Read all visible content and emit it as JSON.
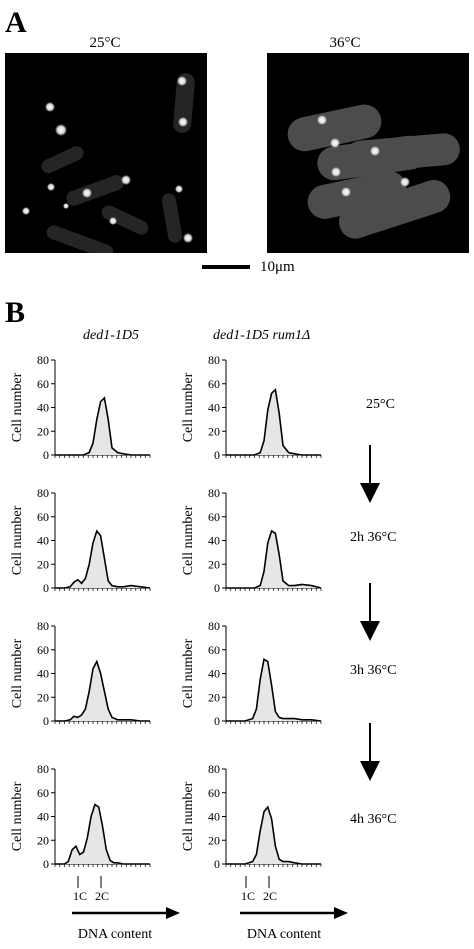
{
  "panel_a": {
    "letter": "A",
    "left_temp": "25°C",
    "right_temp": "36°C",
    "scale_label": "10μm"
  },
  "panel_b": {
    "letter": "B",
    "left_strain": "ded1-1D5",
    "right_strain": "ded1-1D5 rum1Δ",
    "y_axis_label": "Cell number",
    "y_ticks": [
      "0",
      "20",
      "40",
      "60",
      "80"
    ],
    "x_axis_label": "DNA content",
    "dna_markers": [
      "1C",
      "2C"
    ],
    "conditions": [
      "25°C",
      "2h 36°C",
      "3h 36°C",
      "4h 36°C"
    ]
  },
  "chart_data": [
    {
      "type": "area",
      "row": 0,
      "strain": "ded1-1D5",
      "condition": "25°C",
      "x": [
        0,
        10,
        20,
        30,
        36,
        40,
        44,
        48,
        52,
        56,
        60,
        66,
        72,
        80,
        90,
        100
      ],
      "values": [
        0,
        0,
        0,
        0,
        2,
        10,
        30,
        45,
        48,
        30,
        6,
        2,
        1,
        0,
        0,
        0
      ],
      "ylim": [
        0,
        80
      ],
      "xlabel": "",
      "ylabel": "Cell number"
    },
    {
      "type": "area",
      "row": 0,
      "strain": "ded1-1D5 rum1Δ",
      "condition": "25°C",
      "x": [
        0,
        10,
        20,
        30,
        36,
        40,
        44,
        48,
        52,
        56,
        60,
        66,
        72,
        80,
        90,
        100
      ],
      "values": [
        0,
        0,
        0,
        0,
        2,
        12,
        38,
        52,
        55,
        35,
        8,
        2,
        1,
        0,
        0,
        0
      ],
      "ylim": [
        0,
        80
      ],
      "xlabel": "",
      "ylabel": "Cell number"
    },
    {
      "type": "area",
      "row": 1,
      "strain": "ded1-1D5",
      "condition": "2h 36°C",
      "x": [
        0,
        10,
        16,
        20,
        24,
        28,
        32,
        36,
        40,
        44,
        48,
        52,
        56,
        60,
        66,
        72,
        80,
        90,
        100
      ],
      "values": [
        0,
        0,
        1,
        5,
        7,
        4,
        8,
        20,
        38,
        48,
        44,
        25,
        6,
        2,
        1,
        1,
        2,
        1,
        0
      ],
      "ylim": [
        0,
        80
      ],
      "xlabel": "",
      "ylabel": "Cell number"
    },
    {
      "type": "area",
      "row": 1,
      "strain": "ded1-1D5 rum1Δ",
      "condition": "2h 36°C",
      "x": [
        0,
        10,
        20,
        30,
        36,
        40,
        44,
        48,
        52,
        56,
        60,
        66,
        72,
        80,
        90,
        100
      ],
      "values": [
        0,
        0,
        0,
        0,
        2,
        14,
        38,
        48,
        46,
        28,
        6,
        2,
        2,
        3,
        2,
        0
      ],
      "ylim": [
        0,
        80
      ],
      "xlabel": "",
      "ylabel": "Cell number"
    },
    {
      "type": "area",
      "row": 2,
      "strain": "ded1-1D5",
      "condition": "3h 36°C",
      "x": [
        0,
        10,
        16,
        20,
        24,
        28,
        32,
        36,
        40,
        44,
        48,
        52,
        56,
        60,
        66,
        72,
        80,
        90,
        100
      ],
      "values": [
        0,
        0,
        1,
        4,
        3,
        5,
        10,
        25,
        44,
        50,
        40,
        25,
        10,
        3,
        1,
        1,
        1,
        0,
        0
      ],
      "ylim": [
        0,
        80
      ],
      "xlabel": "",
      "ylabel": "Cell number"
    },
    {
      "type": "area",
      "row": 2,
      "strain": "ded1-1D5 rum1Δ",
      "condition": "3h 36°C",
      "x": [
        0,
        10,
        20,
        28,
        32,
        36,
        40,
        44,
        48,
        52,
        56,
        60,
        66,
        72,
        80,
        90,
        100
      ],
      "values": [
        0,
        0,
        0,
        2,
        10,
        35,
        52,
        50,
        30,
        8,
        3,
        2,
        2,
        2,
        1,
        1,
        0
      ],
      "ylim": [
        0,
        80
      ],
      "xlabel": "",
      "ylabel": "Cell number"
    },
    {
      "type": "area",
      "row": 3,
      "strain": "ded1-1D5",
      "condition": "4h 36°C",
      "x": [
        0,
        10,
        14,
        18,
        22,
        26,
        30,
        34,
        38,
        42,
        46,
        50,
        54,
        58,
        62,
        66,
        72,
        80,
        90,
        100
      ],
      "values": [
        0,
        0,
        2,
        12,
        15,
        8,
        10,
        22,
        40,
        50,
        48,
        32,
        12,
        3,
        1,
        1,
        0,
        0,
        0,
        0
      ],
      "ylim": [
        0,
        80
      ],
      "xlabel": "",
      "ylabel": "Cell number"
    },
    {
      "type": "area",
      "row": 3,
      "strain": "ded1-1D5 rum1Δ",
      "condition": "4h 36°C",
      "x": [
        0,
        10,
        20,
        28,
        32,
        36,
        40,
        44,
        48,
        52,
        56,
        60,
        66,
        72,
        80,
        90,
        100
      ],
      "values": [
        0,
        0,
        0,
        2,
        8,
        28,
        44,
        48,
        38,
        15,
        4,
        2,
        2,
        1,
        0,
        0,
        0
      ],
      "ylim": [
        0,
        80
      ],
      "xlabel": "",
      "ylabel": "Cell number"
    }
  ]
}
